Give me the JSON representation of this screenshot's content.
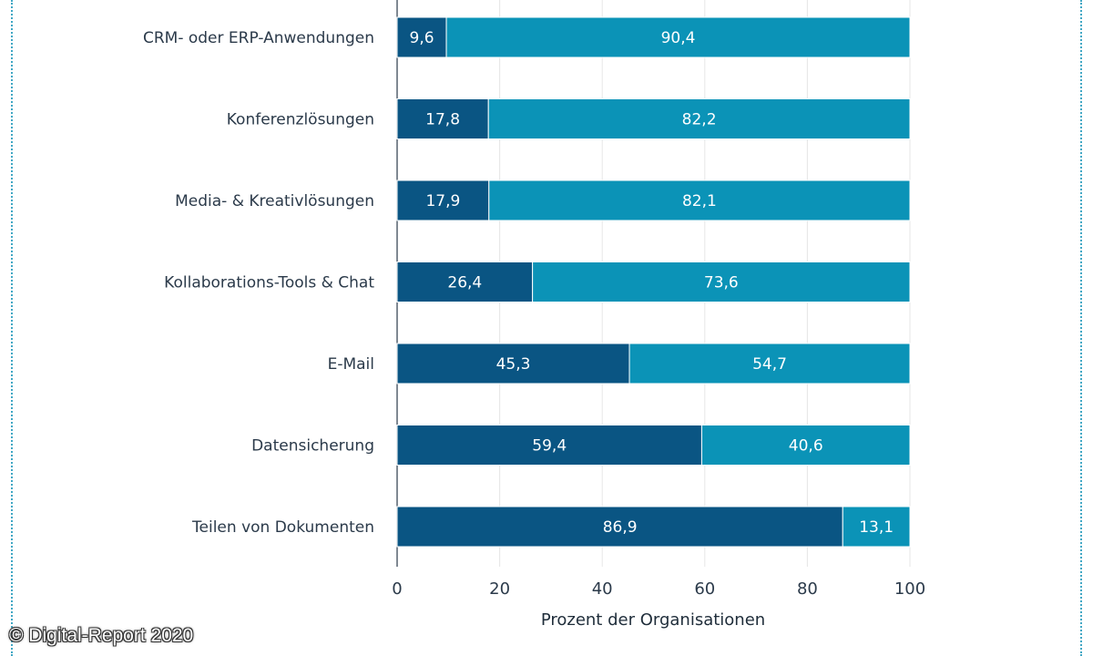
{
  "chart_data": {
    "type": "bar",
    "orientation": "horizontal",
    "stacked": true,
    "categories": [
      "CRM- oder ERP-Anwendungen",
      "Konferenzlösungen",
      "Media- & Kreativlösungen",
      "Kollaborations-Tools & Chat",
      "E-Mail",
      "Datensicherung",
      "Teilen von Dokumenten"
    ],
    "series": [
      {
        "name": "series-1",
        "color": "#0a5583",
        "values": [
          9.6,
          17.8,
          17.9,
          26.4,
          45.3,
          59.4,
          86.9
        ],
        "labels": [
          "9,6",
          "17,8",
          "17,9",
          "26,4",
          "45,3",
          "59,4",
          "86,9"
        ]
      },
      {
        "name": "series-2",
        "color": "#0b93b7",
        "values": [
          90.4,
          82.2,
          82.1,
          73.6,
          54.7,
          40.6,
          13.1
        ],
        "labels": [
          "90,4",
          "82,2",
          "82,1",
          "73,6",
          "54,7",
          "40,6",
          "13,1"
        ]
      }
    ],
    "xlabel": "Prozent der Organisationen",
    "ylabel": "",
    "xlim": [
      0,
      100
    ],
    "xticks": [
      0,
      20,
      40,
      60,
      80,
      100
    ],
    "xtick_labels": [
      "0",
      "20",
      "40",
      "60",
      "80",
      "100"
    ],
    "grid": true
  },
  "watermark": "© Digital-Report 2020"
}
